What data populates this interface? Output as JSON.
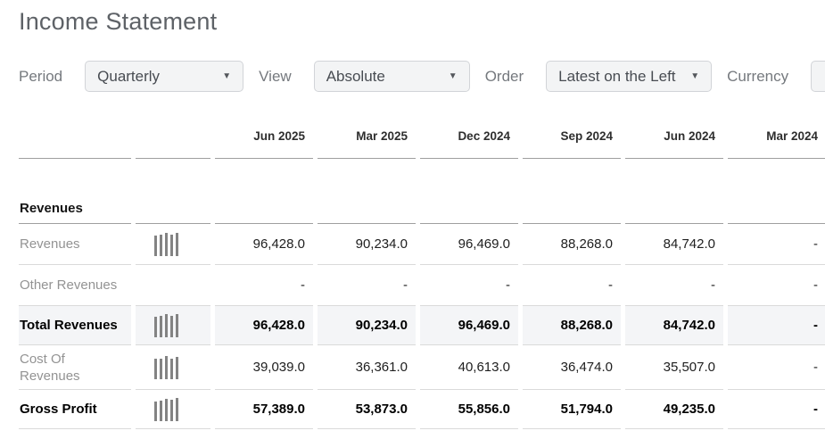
{
  "page": {
    "title": "Income Statement"
  },
  "filters": [
    {
      "label": "Period",
      "value": "Quarterly"
    },
    {
      "label": "View",
      "value": "Absolute"
    },
    {
      "label": "Order",
      "value": "Latest on the Left"
    },
    {
      "label": "Currency",
      "value": ""
    }
  ],
  "icons": {
    "dropdown_caret": "▼"
  },
  "colors": {
    "highlight_row_bg": "#f4f5f7",
    "heavy_border": "#9f9f9f",
    "light_border": "#dadada",
    "spark_bar": "#838383"
  },
  "table": {
    "columns": [
      "Jun 2025",
      "Mar 2025",
      "Dec 2024",
      "Sep 2024",
      "Jun 2024",
      "Mar 2024"
    ],
    "rows": [
      {
        "type": "section",
        "label": "Revenues"
      },
      {
        "type": "data",
        "label": "Revenues",
        "values": [
          "96,428.0",
          "90,234.0",
          "96,469.0",
          "88,268.0",
          "84,742.0",
          "-"
        ],
        "spark": [
          84742,
          88268,
          96469,
          90234,
          96428
        ]
      },
      {
        "type": "data",
        "label": "Other Revenues",
        "values": [
          "-",
          "-",
          "-",
          "-",
          "-",
          "-"
        ]
      },
      {
        "type": "total",
        "label": "Total Revenues",
        "highlight": true,
        "values": [
          "96,428.0",
          "90,234.0",
          "96,469.0",
          "88,268.0",
          "84,742.0",
          "-"
        ],
        "spark": [
          84742,
          88268,
          96469,
          90234,
          96428
        ]
      },
      {
        "type": "data",
        "label": "Cost Of Revenues",
        "wrap": true,
        "values": [
          "39,039.0",
          "36,361.0",
          "40,613.0",
          "36,474.0",
          "35,507.0",
          "-"
        ],
        "spark": [
          35507,
          36474,
          40613,
          36361,
          39039
        ]
      },
      {
        "type": "total",
        "label": "Gross Profit",
        "values": [
          "57,389.0",
          "53,873.0",
          "55,856.0",
          "51,794.0",
          "49,235.0",
          "-"
        ],
        "spark": [
          49235,
          51794,
          55856,
          53873,
          57389
        ]
      }
    ]
  },
  "chart_data": [
    {
      "type": "bar",
      "name": "revenues-sparkline",
      "x": [
        "Jun 2024",
        "Sep 2024",
        "Dec 2024",
        "Mar 2025",
        "Jun 2025"
      ],
      "values": [
        84742,
        88268,
        96469,
        90234,
        96428
      ]
    },
    {
      "type": "bar",
      "name": "total-revenues-sparkline",
      "x": [
        "Jun 2024",
        "Sep 2024",
        "Dec 2024",
        "Mar 2025",
        "Jun 2025"
      ],
      "values": [
        84742,
        88268,
        96469,
        90234,
        96428
      ]
    },
    {
      "type": "bar",
      "name": "cost-of-revenues-sparkline",
      "x": [
        "Jun 2024",
        "Sep 2024",
        "Dec 2024",
        "Mar 2025",
        "Jun 2025"
      ],
      "values": [
        35507,
        36474,
        40613,
        36361,
        39039
      ]
    },
    {
      "type": "bar",
      "name": "gross-profit-sparkline",
      "x": [
        "Jun 2024",
        "Sep 2024",
        "Dec 2024",
        "Mar 2025",
        "Jun 2025"
      ],
      "values": [
        49235,
        51794,
        55856,
        53873,
        57389
      ]
    }
  ]
}
